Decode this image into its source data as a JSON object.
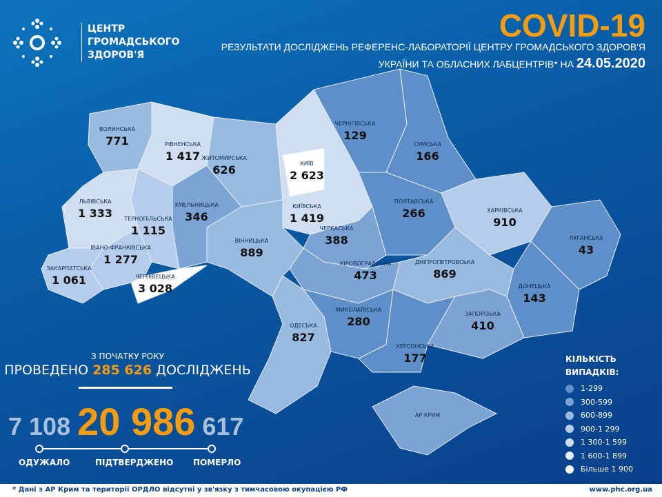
{
  "header": {
    "logo_lines": [
      "ЦЕНТР",
      "ГРОМАДСЬКОГО",
      "ЗДОРОВ'Я"
    ],
    "title": "COVID-19",
    "subtitle1": "РЕЗУЛЬТАТИ ДОСЛІДЖЕНЬ РЕФЕРЕНС-ЛАБОРАТОРІЇ ЦЕНТРУ ГРОМАДСЬКОГО ЗДОРОВ'Я",
    "subtitle2": "УКРАЇНИ ТА ОБЛАСНИХ ЛАБЦЕНТРІВ* НА",
    "date": "24.05.2020"
  },
  "regions": [
    {
      "name": "ВОЛИНСЬКА",
      "value": "771"
    },
    {
      "name": "РІВНЕНСЬКА",
      "value": "1 417"
    },
    {
      "name": "ЖИТОМИРСЬКА",
      "value": "626"
    },
    {
      "name": "КИЇВ",
      "value": "2 623"
    },
    {
      "name": "ЧЕРНІГІВСЬКА",
      "value": "129"
    },
    {
      "name": "СУМСЬКА",
      "value": "166"
    },
    {
      "name": "ЛЬВІВСЬКА",
      "value": "1 333"
    },
    {
      "name": "ТЕРНОПІЛЬСЬКА",
      "value": "1 115"
    },
    {
      "name": "ХМЕЛЬНИЦЬКА",
      "value": "346"
    },
    {
      "name": "КИЇВСЬКА",
      "value": "1 419"
    },
    {
      "name": "ЧЕРКАСЬКА",
      "value": "388"
    },
    {
      "name": "ПОЛТАВСЬКА",
      "value": "266"
    },
    {
      "name": "ХАРКІВСЬКА",
      "value": "910"
    },
    {
      "name": "ЛУГАНСЬКА",
      "value": "43"
    },
    {
      "name": "ЗАКАРПАТСЬКА",
      "value": "1 061"
    },
    {
      "name": "ІВАНО-ФРАНКІВСЬКА",
      "value": "1 277"
    },
    {
      "name": "ЧЕРНІВЕЦЬКА",
      "value": "3 028"
    },
    {
      "name": "ВІННИЦЬКА",
      "value": "889"
    },
    {
      "name": "КІРОВОГРАДСЬКА",
      "value": "473"
    },
    {
      "name": "ДНІПРОПЕТРОВСЬКА",
      "value": "869"
    },
    {
      "name": "ДОНЕЦЬКА",
      "value": "143"
    },
    {
      "name": "МИКОЛАЇВСЬКА",
      "value": "280"
    },
    {
      "name": "ОДЕСЬКА",
      "value": "827"
    },
    {
      "name": "ХЕРСОНСЬКА",
      "value": "177"
    },
    {
      "name": "ЗАПОРІЗЬКА",
      "value": "410"
    },
    {
      "name": "АР КРИМ",
      "value": ""
    }
  ],
  "tests": {
    "caption": "З ПОЧАТКУ РОКУ",
    "prefix": "ПРОВЕДЕНО",
    "value": "285 626",
    "suffix": "ДОСЛІДЖЕНЬ"
  },
  "stats": {
    "recovered": {
      "value": "7 108",
      "label": "ОДУЖАЛО"
    },
    "confirmed": {
      "value": "20 986",
      "label": "ПІДТВЕРДЖЕНО"
    },
    "deaths": {
      "value": "617",
      "label": "ПОМЕРЛО"
    }
  },
  "legend": {
    "title1": "КІЛЬКІСТЬ",
    "title2": "ВИПАДКІВ:",
    "items": [
      {
        "label": "1-299",
        "color": "#5f8fc9"
      },
      {
        "label": "300-599",
        "color": "#7ba4d5"
      },
      {
        "label": "600-899",
        "color": "#98b9e0"
      },
      {
        "label": "900-1 299",
        "color": "#b5cdea"
      },
      {
        "label": "1 300-1 599",
        "color": "#cfdef1"
      },
      {
        "label": "1 600-1 899",
        "color": "#e4edf8"
      },
      {
        "label": "Більше 1 900",
        "color": "#ffffff"
      }
    ]
  },
  "footer": {
    "note": "* Дані з АР Крим та території ОРДЛО відсутні у зв'язку з тимчасовою окупацією РФ",
    "url": "www.phc.org.ua"
  },
  "colors": {
    "accent": "#f39c12",
    "background": "#0a5aa4"
  }
}
